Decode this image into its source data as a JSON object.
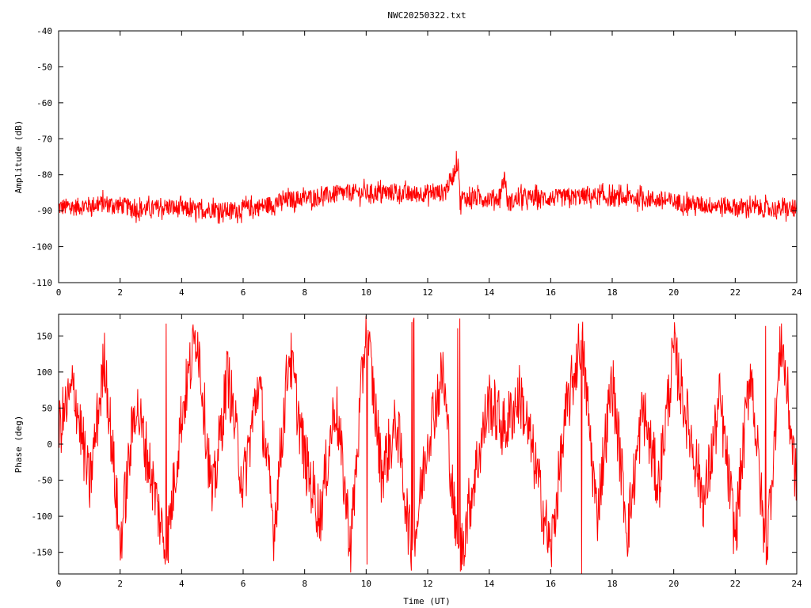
{
  "title": "NWC20250322.txt",
  "chart_data": [
    {
      "type": "line",
      "title": "NWC20250322.txt",
      "xlabel": "",
      "ylabel": "Amplitude (dB)",
      "xlim": [
        0,
        24
      ],
      "ylim": [
        -110,
        -40
      ],
      "xticks": [
        "0",
        "2",
        "4",
        "6",
        "8",
        "10",
        "12",
        "14",
        "16",
        "18",
        "20",
        "22",
        "24"
      ],
      "yticks": [
        "-40",
        "-50",
        "-60",
        "-70",
        "-80",
        "-90",
        "-100",
        "-110"
      ],
      "color": "#ff0000",
      "grid": false,
      "series": [
        {
          "x": [
            0,
            0.5,
            1,
            1.5,
            2,
            2.5,
            3,
            3.5,
            4,
            4.5,
            5,
            5.5,
            6,
            6.5,
            7,
            7.5,
            8,
            8.5,
            9,
            9.5,
            10,
            10.5,
            11,
            11.5,
            12,
            12.5,
            12.8,
            12.9,
            13.0,
            13.05,
            13.1,
            13.5,
            14,
            14.3,
            14.4,
            14.5,
            14.6,
            15,
            15.5,
            16,
            16.5,
            17,
            17.5,
            18,
            18.5,
            19,
            19.5,
            20,
            20.5,
            21,
            21.5,
            22,
            22.5,
            23,
            23.5,
            24
          ],
          "values": [
            -89,
            -89,
            -88.5,
            -88,
            -88.5,
            -89.5,
            -89.5,
            -89,
            -89.5,
            -90,
            -89.5,
            -90,
            -89.5,
            -89,
            -88,
            -87,
            -86.5,
            -86,
            -85.5,
            -85,
            -85,
            -85,
            -85,
            -85.5,
            -85,
            -85,
            -81,
            -78,
            -76,
            -88,
            -86.5,
            -86.5,
            -86.5,
            -86.5,
            -84,
            -80,
            -88,
            -86.5,
            -86.5,
            -86.5,
            -86.5,
            -86,
            -86,
            -86.5,
            -86.5,
            -86.5,
            -87,
            -87.5,
            -88,
            -88.5,
            -88.5,
            -89,
            -89,
            -89.5,
            -89.5,
            -89.5
          ],
          "spread_db": 5
        }
      ]
    },
    {
      "type": "line",
      "title": "",
      "xlabel": "Time (UT)",
      "ylabel": "Phase (deg)",
      "xlim": [
        0,
        24
      ],
      "ylim": [
        -180,
        180
      ],
      "xticks": [
        "0",
        "2",
        "4",
        "6",
        "8",
        "10",
        "12",
        "14",
        "16",
        "18",
        "20",
        "22",
        "24"
      ],
      "yticks": [
        "150",
        "100",
        "50",
        "0",
        "-50",
        "-100",
        "-150"
      ],
      "color": "#ff0000",
      "grid": false,
      "series": [
        {
          "x": [
            0,
            0.5,
            1,
            1.5,
            2,
            2.5,
            3,
            3.5,
            4,
            4.5,
            5,
            5.5,
            6,
            6.5,
            7,
            7.5,
            8,
            8.5,
            9,
            9.5,
            10,
            10.5,
            11,
            11.5,
            12,
            12.5,
            13,
            13.5,
            14,
            14.5,
            15,
            15.5,
            16,
            16.5,
            17,
            17.5,
            18,
            18.5,
            19,
            19.5,
            20,
            20.5,
            21,
            21.5,
            22,
            22.5,
            23,
            23.5,
            24
          ],
          "values": [
            20,
            80,
            -60,
            120,
            -140,
            60,
            -40,
            -150,
            40,
            160,
            -80,
            100,
            -60,
            90,
            -120,
            130,
            -20,
            -100,
            60,
            -140,
            170,
            -40,
            30,
            -160,
            10,
            100,
            -170,
            -50,
            60,
            20,
            70,
            -30,
            -150,
            40,
            150,
            -100,
            90,
            -120,
            50,
            -60,
            130,
            20,
            -80,
            60,
            -130,
            110,
            -160,
            150,
            -60
          ],
          "wrap": true
        }
      ]
    }
  ]
}
